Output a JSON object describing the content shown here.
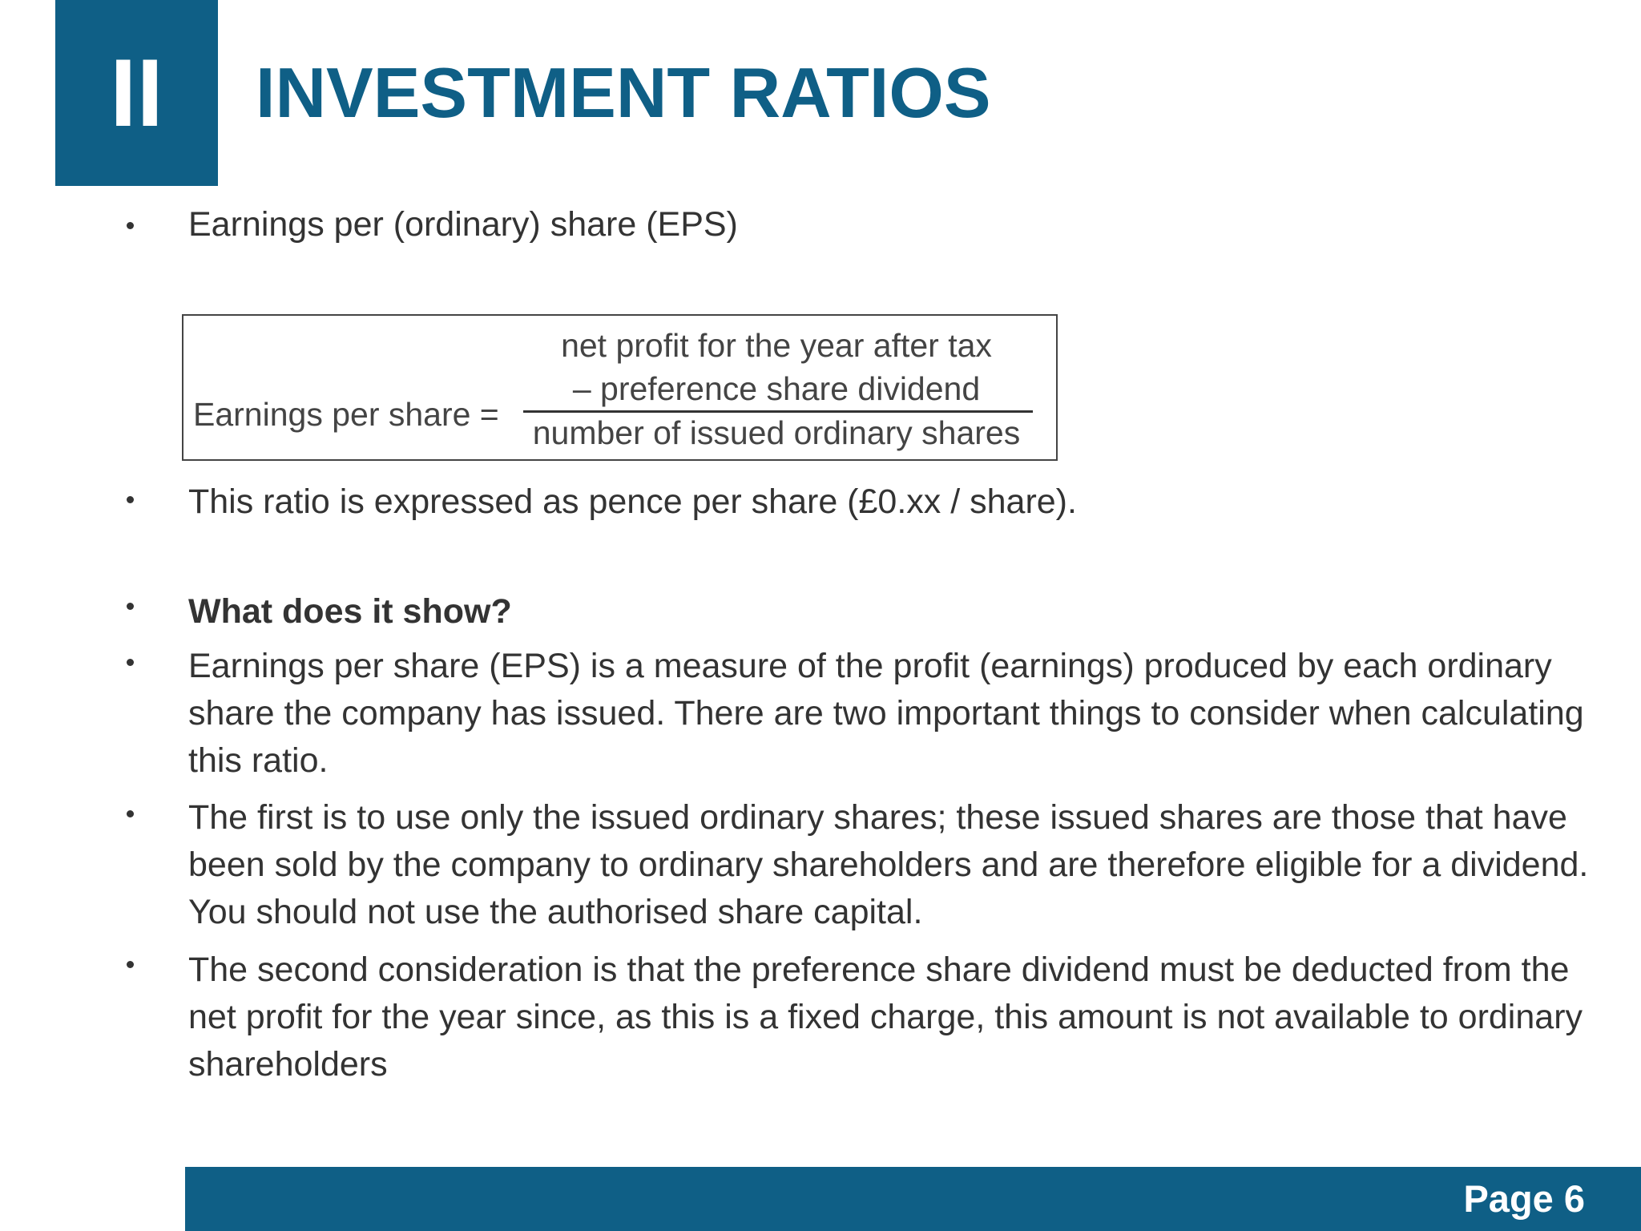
{
  "header": {
    "section_number": "II",
    "title": "INVESTMENT RATIOS"
  },
  "bullets": [
    "Earnings per (ordinary) share (EPS)",
    "This ratio is expressed as pence per share (£0.xx / share).",
    "What does it show?",
    "Earnings per share (EPS) is a measure of the profit (earnings) produced by each ordinary share the company has issued. There are two important things to consider when calculating this ratio.",
    "The first is to use only the issued ordinary shares; these issued shares are those that have been sold by the company to ordinary shareholders and are therefore eligible for a dividend. You should not use the authorised share capital.",
    "The second consideration is that the preference share dividend must be deducted from the net profit for the year since, as this is a fixed charge, this amount is not available to ordinary shareholders"
  ],
  "formula": {
    "label": "Earnings per share =",
    "numerator": [
      "net profit for the year after tax",
      "– preference share dividend"
    ],
    "denominator": "number of issued ordinary shares"
  },
  "footer": {
    "page": "Page 6"
  }
}
